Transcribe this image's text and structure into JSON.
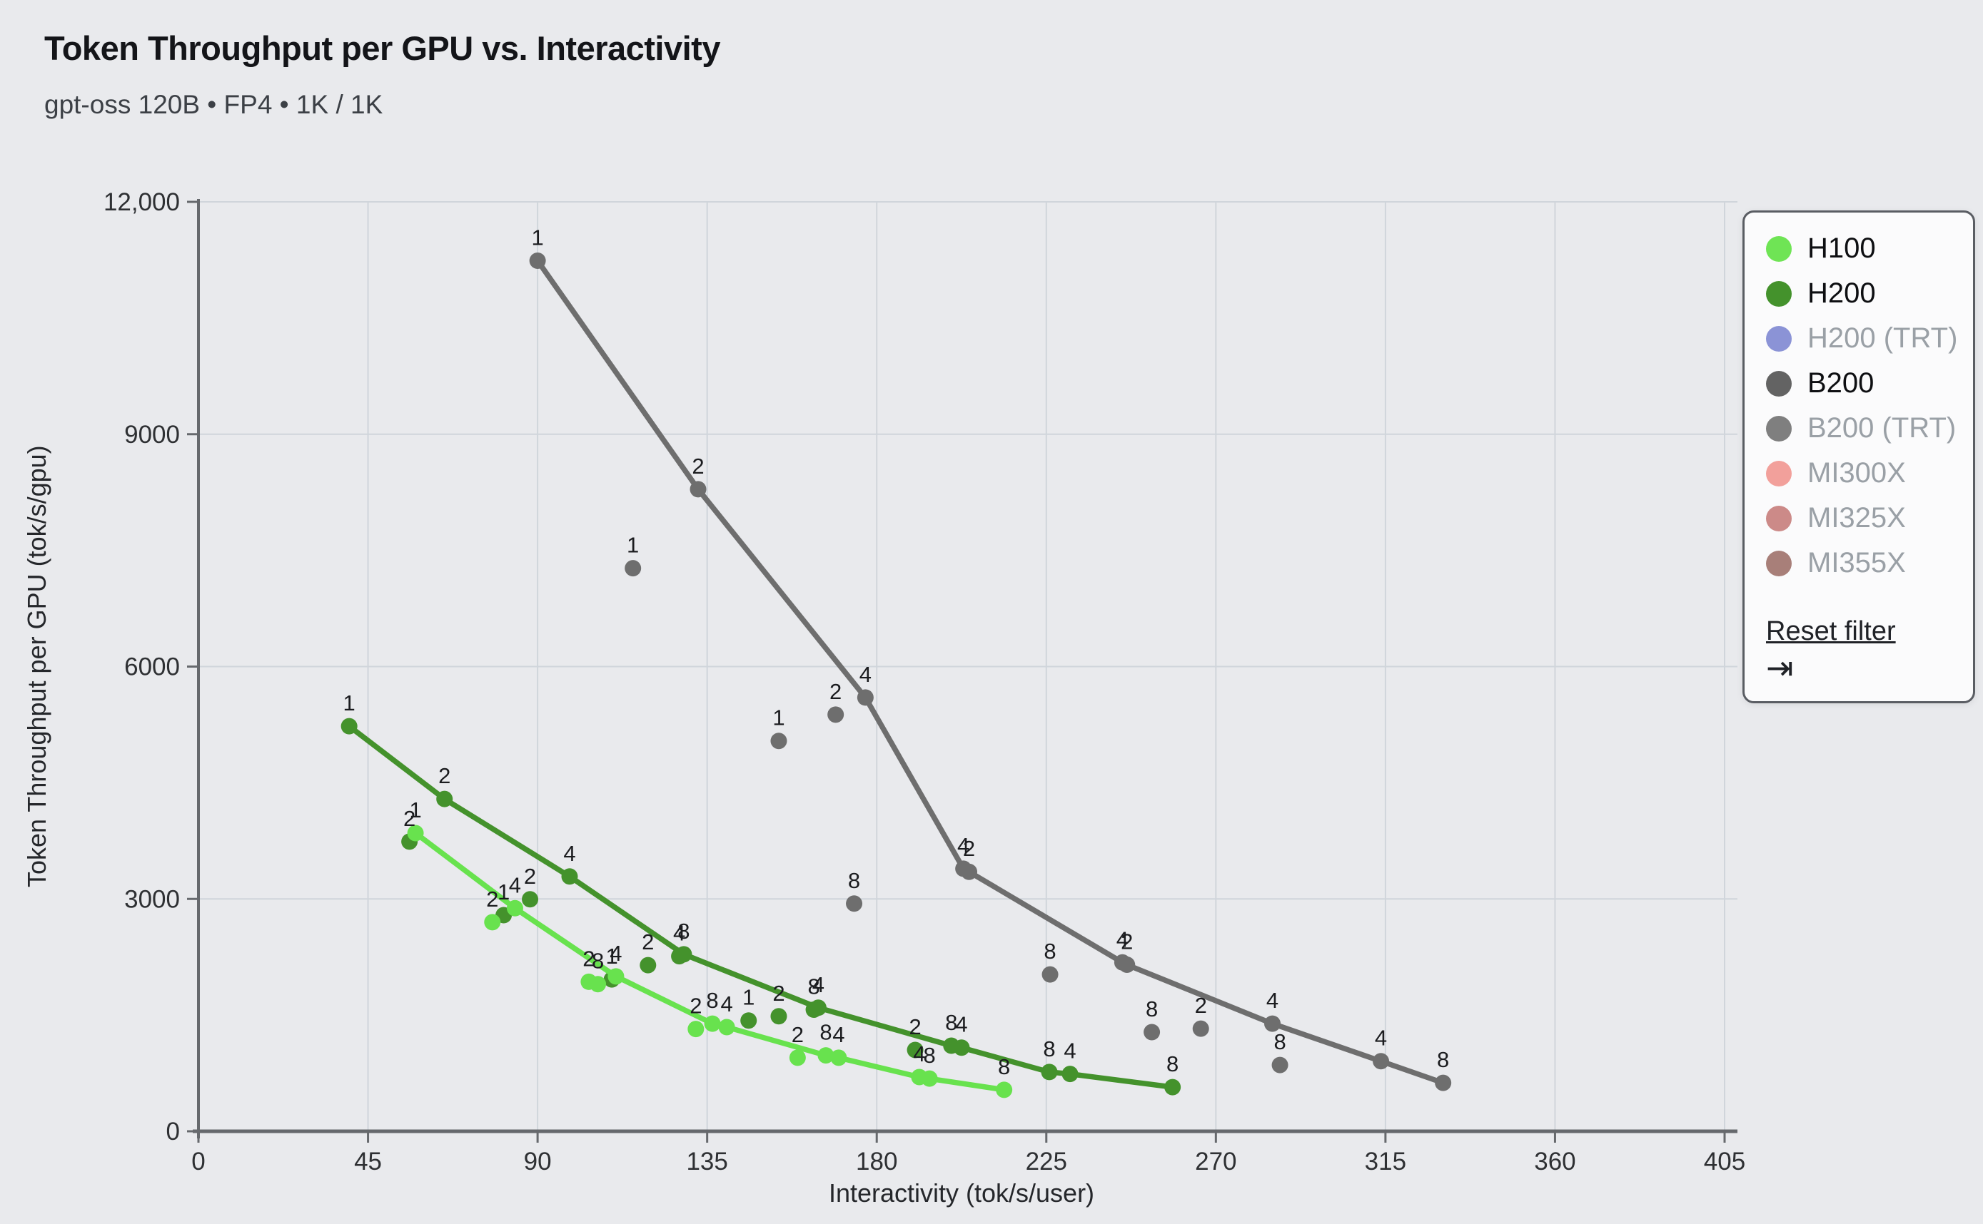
{
  "header": {
    "title": "Token Throughput per GPU vs. Interactivity",
    "subtitle": "gpt-oss 120B • FP4 • 1K / 1K"
  },
  "chart_data": {
    "type": "scatter",
    "title": "Token Throughput per GPU vs. Interactivity",
    "subtitle": "gpt-oss 120B • FP4 • 1K / 1K",
    "xlabel": "Interactivity (tok/s/user)",
    "ylabel": "Token Throughput per GPU (tok/s/gpu)",
    "xlim": [
      0,
      405
    ],
    "ylim": [
      0,
      12000
    ],
    "xticks": [
      0,
      45,
      90,
      135,
      180,
      225,
      270,
      315,
      360,
      405
    ],
    "yticks": [
      {
        "v": 0,
        "label": "0"
      },
      {
        "v": 3000,
        "label": "3000"
      },
      {
        "v": 6000,
        "label": "6000"
      },
      {
        "v": 9000,
        "label": "9000"
      },
      {
        "v": 12000,
        "label": "12,000"
      }
    ],
    "grid": true,
    "legend_position": "top-right",
    "point_label_note": "numbers beside points are GPU-parallelism config labels",
    "series": [
      {
        "name": "B200",
        "color": "#6e6e6e",
        "frontier": [
          [
            90,
            11240,
            "1"
          ],
          [
            132.6,
            8290,
            "2"
          ],
          [
            177,
            5600,
            "4"
          ],
          [
            203,
            3390,
            "4"
          ],
          [
            204.5,
            3350,
            "2"
          ],
          [
            245.2,
            2180,
            "4"
          ],
          [
            246.4,
            2150,
            "2"
          ],
          [
            285,
            1390,
            "4"
          ],
          [
            313.8,
            905,
            "4"
          ],
          [
            330.3,
            625,
            "8"
          ]
        ],
        "scatter": [
          [
            115.3,
            7270,
            "1"
          ],
          [
            154,
            5040,
            "1"
          ],
          [
            169.1,
            5380,
            "2"
          ],
          [
            174,
            2940,
            "8"
          ],
          [
            226,
            2025,
            "8"
          ],
          [
            253,
            1280,
            "8"
          ],
          [
            266,
            1325,
            "2"
          ],
          [
            287,
            855,
            "8"
          ]
        ]
      },
      {
        "name": "H200",
        "color": "#44922c",
        "frontier": [
          [
            40,
            5230,
            "1"
          ],
          [
            65.3,
            4290,
            "2"
          ],
          [
            98.5,
            3290,
            "4"
          ],
          [
            128.8,
            2285,
            "8"
          ],
          [
            164.5,
            1595,
            "4"
          ],
          [
            199.8,
            1105,
            "8"
          ],
          [
            202.5,
            1080,
            "4"
          ],
          [
            225.8,
            765,
            "8"
          ],
          [
            231.3,
            740,
            "4"
          ],
          [
            258.5,
            570,
            "8"
          ]
        ],
        "scatter": [
          [
            56,
            3740,
            "2"
          ],
          [
            81,
            2790,
            "1"
          ],
          [
            88,
            2995,
            "2"
          ],
          [
            109.7,
            1960,
            "1"
          ],
          [
            119.3,
            2145,
            "2"
          ],
          [
            127.6,
            2260,
            "4"
          ],
          [
            146,
            1430,
            "1"
          ],
          [
            154,
            1485,
            "2"
          ],
          [
            163.3,
            1570,
            "8"
          ],
          [
            190.2,
            1050,
            "2"
          ]
        ]
      },
      {
        "name": "H100",
        "color": "#68e24e",
        "frontier": [
          [
            57.6,
            3850,
            "1"
          ],
          [
            84,
            2880,
            "4"
          ],
          [
            110.8,
            2000,
            "4"
          ],
          [
            136.4,
            1390,
            "8"
          ],
          [
            140.2,
            1345,
            "4"
          ],
          [
            166.5,
            980,
            "8"
          ],
          [
            169.9,
            950,
            "4"
          ],
          [
            191.3,
            700,
            "4"
          ],
          [
            194,
            680,
            "8"
          ],
          [
            213.8,
            535,
            "8"
          ]
        ],
        "scatter": [
          [
            78,
            2700,
            "2"
          ],
          [
            103.6,
            1930,
            "2"
          ],
          [
            106,
            1900,
            "8"
          ],
          [
            132,
            1320,
            "2"
          ],
          [
            159,
            950,
            "2"
          ]
        ]
      }
    ]
  },
  "legend": {
    "items": [
      {
        "label": "H100",
        "color": "#6fe455",
        "active": true
      },
      {
        "label": "H200",
        "color": "#44922c",
        "active": true
      },
      {
        "label": "H200 (TRT)",
        "color": "#8b93d6",
        "active": false
      },
      {
        "label": "B200",
        "color": "#636363",
        "active": true
      },
      {
        "label": "B200 (TRT)",
        "color": "#7f7f7f",
        "active": false
      },
      {
        "label": "MI300X",
        "color": "#f2a09b",
        "active": false
      },
      {
        "label": "MI325X",
        "color": "#cc8a88",
        "active": false
      },
      {
        "label": "MI355X",
        "color": "#a87f79",
        "active": false
      }
    ],
    "reset_label": "Reset filter",
    "reset_icon": "arrow-to-bar"
  }
}
